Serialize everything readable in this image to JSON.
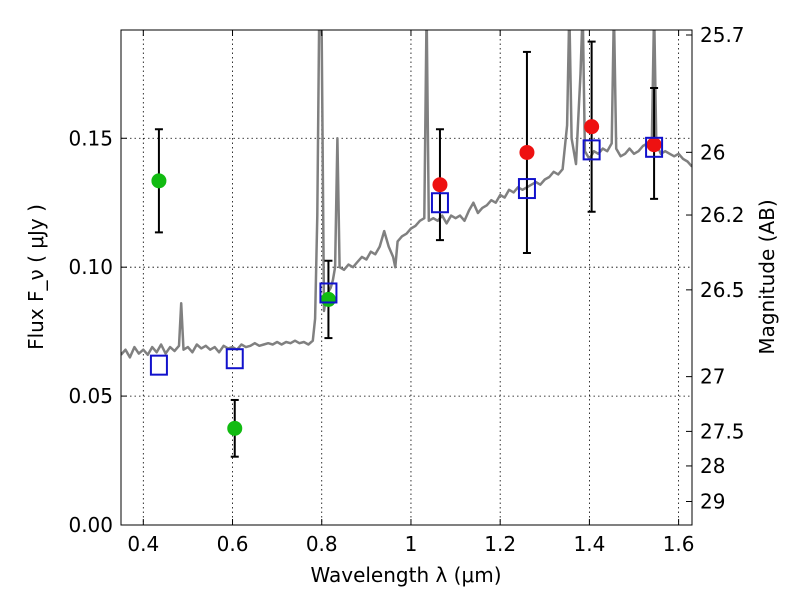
{
  "chart_data": {
    "type": "scatter",
    "title": "",
    "xlabel": "Wavelength λ (μm)",
    "ylabel": "Flux F_ν ( μJy )",
    "y2label": "Magnitude (AB)",
    "xlim": [
      0.35,
      1.63
    ],
    "ylim": [
      0.0,
      0.192
    ],
    "grid": true,
    "xticks": [
      0.4,
      0.6,
      0.8,
      1.0,
      1.2,
      1.4,
      1.6
    ],
    "xtick_labels": [
      "0.4",
      "0.6",
      "0.8",
      "1",
      "1.2",
      "1.4",
      "1.6"
    ],
    "yticks": [
      0.0,
      0.05,
      0.1,
      0.15
    ],
    "ytick_labels": [
      "0.00",
      "0.05",
      "0.10",
      "0.15"
    ],
    "right_ticks": [
      {
        "label": "25.7",
        "mag": 25.7
      },
      {
        "label": "26",
        "mag": 26.0
      },
      {
        "label": "26.2",
        "mag": 26.2
      },
      {
        "label": "26.5",
        "mag": 26.5
      },
      {
        "label": "27",
        "mag": 27.0
      },
      {
        "label": "27.5",
        "mag": 27.5
      },
      {
        "label": "28",
        "mag": 28.0
      },
      {
        "label": "29",
        "mag": 29.0
      }
    ],
    "series": [
      {
        "name": "",
        "marker": "circle",
        "color": "#11bb11",
        "points": [
          {
            "x": 0.435,
            "y": 0.1335,
            "yerr_low": 0.1135,
            "yerr_high": 0.1535
          },
          {
            "x": 0.605,
            "y": 0.0375,
            "yerr_low": 0.0265,
            "yerr_high": 0.0485
          },
          {
            "x": 0.815,
            "y": 0.0875,
            "yerr_low": 0.0725,
            "yerr_high": 0.1025
          }
        ]
      },
      {
        "name": "",
        "marker": "circle",
        "color": "#ee1111",
        "points": [
          {
            "x": 1.065,
            "y": 0.132,
            "yerr_low": 0.1105,
            "yerr_high": 0.1535
          },
          {
            "x": 1.26,
            "y": 0.1445,
            "yerr_low": 0.1055,
            "yerr_high": 0.1835
          },
          {
            "x": 1.405,
            "y": 0.1545,
            "yerr_low": 0.1215,
            "yerr_high": 0.1875
          },
          {
            "x": 1.545,
            "y": 0.1475,
            "yerr_low": 0.1265,
            "yerr_high": 0.1695
          }
        ]
      },
      {
        "name": "",
        "marker": "open-square",
        "color": "#1111cc",
        "points": [
          {
            "x": 0.435,
            "y": 0.062
          },
          {
            "x": 0.605,
            "y": 0.0645
          },
          {
            "x": 0.815,
            "y": 0.09
          },
          {
            "x": 1.065,
            "y": 0.125
          },
          {
            "x": 1.26,
            "y": 0.1305
          },
          {
            "x": 1.405,
            "y": 0.1455
          },
          {
            "x": 1.545,
            "y": 0.1465
          }
        ]
      }
    ],
    "spectrum": {
      "name": "",
      "color": "#808080",
      "points": [
        [
          0.35,
          0.066
        ],
        [
          0.36,
          0.068
        ],
        [
          0.37,
          0.065
        ],
        [
          0.38,
          0.069
        ],
        [
          0.39,
          0.0665
        ],
        [
          0.4,
          0.068
        ],
        [
          0.41,
          0.066
        ],
        [
          0.42,
          0.069
        ],
        [
          0.43,
          0.067
        ],
        [
          0.44,
          0.07
        ],
        [
          0.45,
          0.0665
        ],
        [
          0.46,
          0.069
        ],
        [
          0.47,
          0.0675
        ],
        [
          0.48,
          0.0695
        ],
        [
          0.485,
          0.086
        ],
        [
          0.49,
          0.068
        ],
        [
          0.5,
          0.069
        ],
        [
          0.51,
          0.067
        ],
        [
          0.52,
          0.07
        ],
        [
          0.53,
          0.0685
        ],
        [
          0.54,
          0.0695
        ],
        [
          0.55,
          0.068
        ],
        [
          0.56,
          0.069
        ],
        [
          0.57,
          0.067
        ],
        [
          0.58,
          0.0695
        ],
        [
          0.59,
          0.0685
        ],
        [
          0.6,
          0.069
        ],
        [
          0.61,
          0.068
        ],
        [
          0.62,
          0.07
        ],
        [
          0.63,
          0.069
        ],
        [
          0.64,
          0.0695
        ],
        [
          0.65,
          0.0705
        ],
        [
          0.66,
          0.0695
        ],
        [
          0.67,
          0.07
        ],
        [
          0.68,
          0.0705
        ],
        [
          0.69,
          0.07
        ],
        [
          0.7,
          0.071
        ],
        [
          0.71,
          0.07
        ],
        [
          0.72,
          0.071
        ],
        [
          0.73,
          0.0705
        ],
        [
          0.74,
          0.0715
        ],
        [
          0.75,
          0.0705
        ],
        [
          0.76,
          0.071
        ],
        [
          0.77,
          0.07
        ],
        [
          0.78,
          0.0715
        ],
        [
          0.785,
          0.08
        ],
        [
          0.79,
          0.12
        ],
        [
          0.795,
          0.21
        ],
        [
          0.8,
          0.19
        ],
        [
          0.805,
          0.083
        ],
        [
          0.81,
          0.089
        ],
        [
          0.82,
          0.092
        ],
        [
          0.825,
          0.095
        ],
        [
          0.83,
          0.1
        ],
        [
          0.835,
          0.15
        ],
        [
          0.84,
          0.1
        ],
        [
          0.85,
          0.099
        ],
        [
          0.86,
          0.101
        ],
        [
          0.87,
          0.1
        ],
        [
          0.88,
          0.102
        ],
        [
          0.89,
          0.104
        ],
        [
          0.9,
          0.103
        ],
        [
          0.91,
          0.106
        ],
        [
          0.92,
          0.105
        ],
        [
          0.93,
          0.108
        ],
        [
          0.94,
          0.114
        ],
        [
          0.95,
          0.108
        ],
        [
          0.96,
          0.104
        ],
        [
          0.965,
          0.1
        ],
        [
          0.97,
          0.11
        ],
        [
          0.98,
          0.112
        ],
        [
          0.99,
          0.113
        ],
        [
          1.0,
          0.115
        ],
        [
          1.01,
          0.116
        ],
        [
          1.02,
          0.118
        ],
        [
          1.03,
          0.119
        ],
        [
          1.035,
          0.2
        ],
        [
          1.04,
          0.118
        ],
        [
          1.05,
          0.119
        ],
        [
          1.06,
          0.118
        ],
        [
          1.07,
          0.12
        ],
        [
          1.08,
          0.117
        ],
        [
          1.09,
          0.12
        ],
        [
          1.1,
          0.119
        ],
        [
          1.11,
          0.12
        ],
        [
          1.12,
          0.118
        ],
        [
          1.13,
          0.122
        ],
        [
          1.14,
          0.125
        ],
        [
          1.15,
          0.121
        ],
        [
          1.16,
          0.123
        ],
        [
          1.17,
          0.124
        ],
        [
          1.18,
          0.126
        ],
        [
          1.19,
          0.125
        ],
        [
          1.2,
          0.128
        ],
        [
          1.21,
          0.127
        ],
        [
          1.22,
          0.13
        ],
        [
          1.23,
          0.129
        ],
        [
          1.24,
          0.131
        ],
        [
          1.25,
          0.13
        ],
        [
          1.26,
          0.131
        ],
        [
          1.27,
          0.132
        ],
        [
          1.28,
          0.133
        ],
        [
          1.29,
          0.132
        ],
        [
          1.3,
          0.134
        ],
        [
          1.31,
          0.135
        ],
        [
          1.32,
          0.137
        ],
        [
          1.33,
          0.136
        ],
        [
          1.34,
          0.138
        ],
        [
          1.35,
          0.155
        ],
        [
          1.355,
          0.2
        ],
        [
          1.36,
          0.15
        ],
        [
          1.37,
          0.14
        ],
        [
          1.38,
          0.175
        ],
        [
          1.385,
          0.2
        ],
        [
          1.39,
          0.145
        ],
        [
          1.4,
          0.142
        ],
        [
          1.41,
          0.145
        ],
        [
          1.42,
          0.144
        ],
        [
          1.43,
          0.146
        ],
        [
          1.44,
          0.145
        ],
        [
          1.45,
          0.148
        ],
        [
          1.455,
          0.2
        ],
        [
          1.46,
          0.146
        ],
        [
          1.47,
          0.143
        ],
        [
          1.48,
          0.144
        ],
        [
          1.49,
          0.146
        ],
        [
          1.5,
          0.144
        ],
        [
          1.51,
          0.145
        ],
        [
          1.52,
          0.147
        ],
        [
          1.53,
          0.148
        ],
        [
          1.54,
          0.15
        ],
        [
          1.545,
          0.2
        ],
        [
          1.55,
          0.148
        ],
        [
          1.56,
          0.144
        ],
        [
          1.57,
          0.145
        ],
        [
          1.58,
          0.144
        ],
        [
          1.59,
          0.143
        ],
        [
          1.6,
          0.144
        ],
        [
          1.61,
          0.142
        ],
        [
          1.62,
          0.141
        ],
        [
          1.63,
          0.139
        ]
      ]
    }
  }
}
